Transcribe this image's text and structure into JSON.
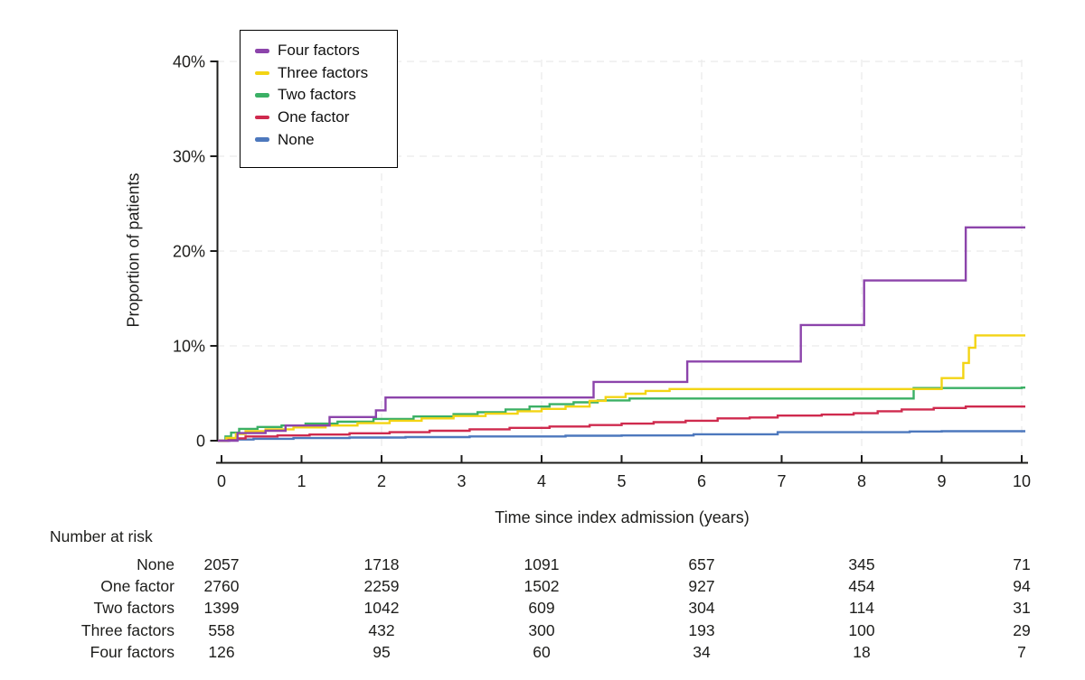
{
  "chart_data": {
    "type": "line",
    "subtype": "kaplan-meier-step",
    "title": "",
    "xlabel": "Time since index admission (years)",
    "ylabel": "Proportion of patients",
    "xlim": [
      0,
      10
    ],
    "ylim": [
      0,
      40
    ],
    "x_ticks": [
      0,
      1,
      2,
      3,
      4,
      5,
      6,
      7,
      8,
      9,
      10
    ],
    "y_ticks": [
      0,
      10,
      20,
      30,
      40
    ],
    "y_tick_labels": [
      "0",
      "10%",
      "20%",
      "30%",
      "40%"
    ],
    "x_gridlines": [
      2,
      4,
      6,
      8,
      10
    ],
    "y_gridlines": [
      10,
      20,
      30,
      40
    ],
    "grid": true,
    "legend_position": "top-left",
    "axis_color": "#1d1d1b",
    "grid_color": "#eaeaea",
    "unit": "percent of patients",
    "series": [
      {
        "name": "Four factors",
        "color": "#8c44ab",
        "points": [
          [
            0,
            0
          ],
          [
            0.2,
            0.8
          ],
          [
            0.55,
            1.05
          ],
          [
            0.8,
            1.6
          ],
          [
            1.35,
            2.5
          ],
          [
            1.93,
            3.2
          ],
          [
            2.05,
            4.55
          ],
          [
            4.65,
            6.2
          ],
          [
            5.82,
            8.35
          ],
          [
            7.24,
            12.2
          ],
          [
            8.03,
            16.9
          ],
          [
            9.3,
            22.5
          ],
          [
            10,
            22.5
          ]
        ]
      },
      {
        "name": "Three factors",
        "color": "#f3d414",
        "points": [
          [
            0,
            0
          ],
          [
            0.06,
            0.3
          ],
          [
            0.18,
            0.7
          ],
          [
            0.3,
            1.0
          ],
          [
            0.55,
            1.2
          ],
          [
            0.9,
            1.4
          ],
          [
            1.3,
            1.6
          ],
          [
            1.7,
            1.85
          ],
          [
            2.1,
            2.1
          ],
          [
            2.5,
            2.35
          ],
          [
            2.9,
            2.6
          ],
          [
            3.3,
            2.85
          ],
          [
            3.7,
            3.1
          ],
          [
            4.0,
            3.35
          ],
          [
            4.3,
            3.6
          ],
          [
            4.6,
            4.2
          ],
          [
            4.8,
            4.6
          ],
          [
            5.05,
            4.95
          ],
          [
            5.3,
            5.25
          ],
          [
            5.6,
            5.45
          ],
          [
            9.0,
            6.6
          ],
          [
            9.27,
            8.2
          ],
          [
            9.34,
            9.8
          ],
          [
            9.42,
            11.1
          ],
          [
            10,
            11.1
          ]
        ]
      },
      {
        "name": "Two factors",
        "color": "#3bb065",
        "points": [
          [
            0,
            0
          ],
          [
            0.05,
            0.45
          ],
          [
            0.12,
            0.85
          ],
          [
            0.22,
            1.25
          ],
          [
            0.45,
            1.45
          ],
          [
            0.75,
            1.6
          ],
          [
            1.05,
            1.8
          ],
          [
            1.45,
            2.0
          ],
          [
            1.9,
            2.3
          ],
          [
            2.4,
            2.55
          ],
          [
            2.9,
            2.8
          ],
          [
            3.2,
            3.0
          ],
          [
            3.55,
            3.3
          ],
          [
            3.85,
            3.6
          ],
          [
            4.1,
            3.85
          ],
          [
            4.4,
            4.05
          ],
          [
            4.7,
            4.25
          ],
          [
            5.1,
            4.45
          ],
          [
            8.65,
            5.55
          ],
          [
            10,
            5.6
          ]
        ]
      },
      {
        "name": "One factor",
        "color": "#cf2a4e",
        "points": [
          [
            0,
            0
          ],
          [
            0.08,
            0.25
          ],
          [
            0.3,
            0.45
          ],
          [
            0.7,
            0.55
          ],
          [
            1.1,
            0.65
          ],
          [
            1.6,
            0.78
          ],
          [
            2.1,
            0.9
          ],
          [
            2.6,
            1.05
          ],
          [
            3.1,
            1.2
          ],
          [
            3.6,
            1.35
          ],
          [
            4.1,
            1.5
          ],
          [
            4.6,
            1.65
          ],
          [
            5.0,
            1.8
          ],
          [
            5.4,
            1.95
          ],
          [
            5.8,
            2.1
          ],
          [
            6.2,
            2.35
          ],
          [
            6.6,
            2.45
          ],
          [
            6.95,
            2.65
          ],
          [
            7.5,
            2.75
          ],
          [
            7.9,
            2.9
          ],
          [
            8.2,
            3.1
          ],
          [
            8.5,
            3.3
          ],
          [
            8.9,
            3.45
          ],
          [
            9.3,
            3.6
          ],
          [
            10,
            3.6
          ]
        ]
      },
      {
        "name": "None",
        "color": "#4d78bd",
        "points": [
          [
            0,
            0
          ],
          [
            0.1,
            0.12
          ],
          [
            0.4,
            0.2
          ],
          [
            0.9,
            0.28
          ],
          [
            1.6,
            0.33
          ],
          [
            2.3,
            0.38
          ],
          [
            3.1,
            0.45
          ],
          [
            4.3,
            0.52
          ],
          [
            5.0,
            0.55
          ],
          [
            5.9,
            0.68
          ],
          [
            6.95,
            0.9
          ],
          [
            8.6,
            0.97
          ],
          [
            9.0,
            1.0
          ],
          [
            10,
            1.0
          ]
        ]
      }
    ]
  },
  "risk_table": {
    "title": "Number at risk",
    "times": [
      0,
      2,
      4,
      6,
      8,
      10
    ],
    "rows": [
      {
        "label": "None",
        "values": [
          "2057",
          "1718",
          "1091",
          "657",
          "345",
          "71"
        ]
      },
      {
        "label": "One factor",
        "values": [
          "2760",
          "2259",
          "1502",
          "927",
          "454",
          "94"
        ]
      },
      {
        "label": "Two factors",
        "values": [
          "1399",
          "1042",
          "609",
          "304",
          "114",
          "31"
        ]
      },
      {
        "label": "Three factors",
        "values": [
          "558",
          "432",
          "300",
          "193",
          "100",
          "29"
        ]
      },
      {
        "label": "Four factors",
        "values": [
          "126",
          "95",
          "60",
          "34",
          "18",
          "7"
        ]
      }
    ]
  }
}
